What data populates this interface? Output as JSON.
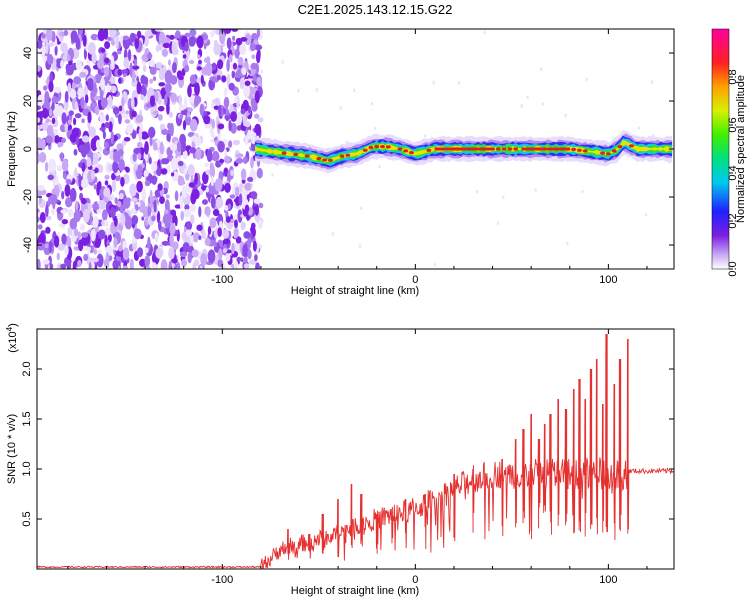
{
  "title": "C2E1.2025.143.12.15.G22",
  "colors": {
    "snr_line": "#e53030",
    "noise_purple": "#7b1fe0",
    "band_core": "#e02020"
  },
  "chart_data": [
    {
      "type": "heatmap",
      "xlabel": "Height of straight line (km)",
      "ylabel": "Frequency (Hz)",
      "xlim": [
        -196,
        134
      ],
      "ylim": [
        -50,
        50
      ],
      "xticks": [
        -100,
        0,
        100
      ],
      "yticks": [
        -40,
        -20,
        0,
        20,
        40
      ],
      "colorbar": {
        "label": "Normalized spectral amplitude",
        "range": [
          0,
          1
        ],
        "ticks": [
          "0.0",
          "0.2",
          "0.4",
          "0.6",
          "0.8"
        ],
        "tick_values": [
          0.0,
          0.2,
          0.4,
          0.6,
          0.8
        ]
      },
      "noise_region_x": [
        -196,
        -80
      ],
      "signal_centerline": {
        "x": [
          -83,
          -75,
          -65,
          -55,
          -45,
          -38,
          -30,
          -22,
          -15,
          -8,
          0,
          10,
          20,
          30,
          40,
          50,
          60,
          70,
          80,
          90,
          100,
          105,
          108,
          115,
          125,
          134
        ],
        "y": [
          0,
          -1,
          -2,
          -3,
          -5,
          -3,
          -2,
          1,
          1,
          0,
          -2,
          0,
          0,
          0,
          0,
          0,
          0,
          0,
          0,
          -1,
          -2,
          0,
          3,
          0,
          0,
          0
        ]
      }
    },
    {
      "type": "line",
      "xlabel": "Height of straight line (km)",
      "ylabel": "SNR (10 * v/v)",
      "multiplier_label": "(x10",
      "multiplier_exp": "4",
      "multiplier_close": ")",
      "xlim": [
        -196,
        134
      ],
      "ylim": [
        0,
        2.4
      ],
      "xticks": [
        -100,
        0,
        100
      ],
      "yticks": [
        0.5,
        1.0,
        1.5,
        2.0
      ],
      "yticklabels": [
        "0.5",
        "1.0",
        "1.5",
        "2.0"
      ],
      "baseline_level": 0.02,
      "envelope": {
        "x": [
          -196,
          -80,
          -75,
          -70,
          -60,
          -50,
          -40,
          -30,
          -20,
          -10,
          0,
          10,
          20,
          30,
          40,
          50,
          60,
          70,
          80,
          90,
          100,
          105,
          110,
          134
        ],
        "y": [
          0.02,
          0.02,
          0.1,
          0.2,
          0.25,
          0.3,
          0.35,
          0.45,
          0.5,
          0.55,
          0.6,
          0.7,
          0.8,
          0.9,
          0.95,
          0.95,
          0.95,
          0.95,
          0.95,
          0.95,
          0.95,
          0.95,
          0.98,
          0.98
        ]
      },
      "spikes": {
        "x": [
          -66,
          -55,
          -48,
          -40,
          -33,
          -28,
          -20,
          -12,
          -5,
          5,
          20,
          30,
          45,
          52,
          56,
          60,
          64,
          67,
          70,
          74,
          78,
          82,
          85,
          88,
          91,
          94,
          97,
          99,
          103,
          106,
          110
        ],
        "y": [
          0.4,
          0.35,
          0.55,
          0.7,
          0.85,
          0.75,
          0.55,
          0.6,
          0.7,
          0.75,
          0.95,
          1.0,
          1.1,
          1.3,
          1.4,
          1.55,
          1.3,
          1.45,
          1.55,
          1.7,
          1.6,
          1.8,
          1.9,
          1.7,
          2.0,
          2.1,
          1.65,
          2.35,
          1.85,
          2.1,
          2.3
        ]
      }
    }
  ]
}
